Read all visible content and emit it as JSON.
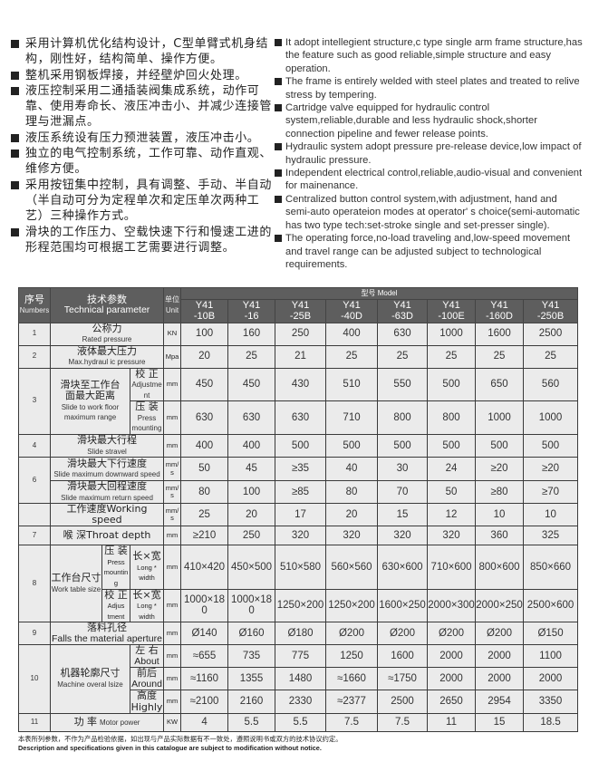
{
  "features_zh": [
    "采用计算机优化结构设计，C型单臂式机身结构，刚性好，结构简单、操作方便。",
    "整机采用钢板焊接，并经壁炉回火处理。",
    "液压控制采用二通插装阀集成系统，动作可靠、使用寿命长、液压冲击小、并减少连接管理与泄漏点。",
    "液压系统设有压力预泄装置，液压冲击小。",
    "独立的电气控制系统，工作可靠、动作直观、维修方便。",
    "采用按钮集中控制，具有调整、手动、半自动（半自动可分为定程单次和定压单次两种工艺）三种操作方式。",
    "滑块的工作压力、空载快速下行和慢速工进的形程范围均可根据工艺需要进行调整。"
  ],
  "features_en": [
    "It adopt intellegient structure,c type single arm frame structure,has the feature such as good reliable,simple structure and easy operation.",
    "The frame is entirely welded with steel plates and treated to relive stress by tempering.",
    "Cartridge valve equipped for hydraulic control system,reliable,durable and less hydraulic shock,shorter connection pipeline and fewer release points.",
    "Hydraulic system adopt pressure pre-release device,low impact of hydraulic pressure.",
    "Independent electrical control,reliable,audio-visual and convenient for mainenance.",
    "Centralized button control system,with adjustment, hand and semi-auto operateion modes at operator' s choice(semi-automatic has two type tech:set-stroke single and set-presser single).",
    "The operating force,no-load traveling and,low-speed movement and travel range can be adjusted subject to technological requirements."
  ],
  "table": {
    "header": {
      "no_zh": "序号",
      "no_en": "Numbers",
      "param_zh": "技术参数",
      "param_en": "Technical parameter",
      "unit_zh": "单位",
      "unit_en": "Unit",
      "model": "型号 Model",
      "models": [
        "Y41 -10B",
        "Y41 -16",
        "Y41 -25B",
        "Y41 -40D",
        "Y41 -63D",
        "Y41 -100E",
        "Y41 -160D",
        "Y41 -250B"
      ]
    },
    "r1": {
      "no": "1",
      "zh": "公称力",
      "en": "Rated pressure",
      "unit": "KN",
      "values": [
        "100",
        "160",
        "250",
        "400",
        "630",
        "1000",
        "1600",
        "2500"
      ]
    },
    "r2": {
      "no": "2",
      "zh": "液体最大压力",
      "en": "Max.hydraul ic pressure",
      "unit": "Mpa",
      "values": [
        "20",
        "25",
        "21",
        "25",
        "25",
        "25",
        "25",
        "25"
      ]
    },
    "r3": {
      "no": "3",
      "zh1": "滑块至工作台",
      "zh2": "面最大距离",
      "en": "Slide to work floor maximum range",
      "a": {
        "zh": "校 正",
        "en": "Adjustment",
        "unit": "mm",
        "values": [
          "450",
          "450",
          "430",
          "510",
          "550",
          "500",
          "650",
          "560"
        ]
      },
      "b": {
        "zh": "压 装",
        "en": "Press mounting",
        "unit": "mm",
        "values": [
          "630",
          "630",
          "630",
          "710",
          "800",
          "800",
          "1000",
          "1000"
        ]
      }
    },
    "r4": {
      "no": "4",
      "zh": "滑块最大行程",
      "en": "Slide stravel",
      "unit": "mm",
      "values": [
        "400",
        "400",
        "500",
        "500",
        "500",
        "500",
        "500",
        "500"
      ]
    },
    "r6": {
      "no": "6",
      "a": {
        "zh": "滑块最大下行速度",
        "en": "Slide maximum downward speed",
        "unit": "mm/s",
        "values": [
          "50",
          "45",
          "≥35",
          "40",
          "30",
          "24",
          "≥20",
          "≥20"
        ]
      },
      "b": {
        "zh": "滑块最大回程速度",
        "en": "Slide maximum return speed",
        "unit": "mm/s",
        "values": [
          "80",
          "100",
          "≥85",
          "80",
          "70",
          "50",
          "≥80",
          "≥70"
        ]
      }
    },
    "rw": {
      "label": "工作速度Working speed",
      "unit": "mm/s",
      "values": [
        "25",
        "20",
        "17",
        "20",
        "15",
        "12",
        "10",
        "10"
      ]
    },
    "r7": {
      "no": "7",
      "label": "喉 深Throat depth",
      "unit": "mm",
      "values": [
        "≥210",
        "250",
        "320",
        "320",
        "320",
        "320",
        "360",
        "325"
      ]
    },
    "r8": {
      "no": "8",
      "zh": "工作台尺寸",
      "en": "Work table size",
      "dim_zh": "长×宽",
      "dim_en": "Long * width",
      "a": {
        "zh": "压 装",
        "en": "Press mounting",
        "unit": "mm",
        "values": [
          "410×420",
          "450×500",
          "510×580",
          "560×560",
          "630×600",
          "710×600",
          "800×600",
          "850×660"
        ]
      },
      "b": {
        "zh": "校 正",
        "en": "Adjus tment",
        "unit": "mm",
        "values": [
          "1000×180",
          "1000×180",
          "1250×200",
          "1250×200",
          "1600×250",
          "2000×300",
          "2000×250",
          "2500×600"
        ]
      }
    },
    "r9": {
      "no": "9",
      "zh": "落料孔径",
      "en": "Falls the material aperture",
      "unit": "mm",
      "values": [
        "Ø140",
        "Ø160",
        "Ø180",
        "Ø200",
        "Ø200",
        "Ø200",
        "Ø200",
        "Ø150"
      ]
    },
    "r10": {
      "no": "10",
      "zh": "机器轮廓尺寸",
      "en": "Machine overal lsize",
      "a": {
        "zh": "左 右",
        "en": "About",
        "unit": "mm",
        "values": [
          "≈655",
          "735",
          "775",
          "1250",
          "1600",
          "2000",
          "2000",
          "1100"
        ]
      },
      "b": {
        "zh": "前后",
        "en": "Around",
        "unit": "mm",
        "values": [
          "≈1160",
          "1355",
          "1480",
          "≈1660",
          "≈1750",
          "2000",
          "2000",
          "2000"
        ]
      },
      "c": {
        "label": "高度Highly",
        "unit": "mm",
        "values": [
          "≈2100",
          "2160",
          "2330",
          "≈2377",
          "2500",
          "2650",
          "2954",
          "3350"
        ]
      }
    },
    "r11": {
      "no": "11",
      "zh": "功 率",
      "en": "Motor power",
      "unit": "KW",
      "values": [
        "4",
        "5.5",
        "5.5",
        "7.5",
        "7.5",
        "11",
        "15",
        "18.5"
      ]
    }
  },
  "note_zh": "本表所列参数，不作为产品检验依据，如出现与产品实际数据有不一致处，遵照说明书或双方的技术协议约定。",
  "note_en": "Description and specifications given in this catalogue are subject to modification without notice."
}
